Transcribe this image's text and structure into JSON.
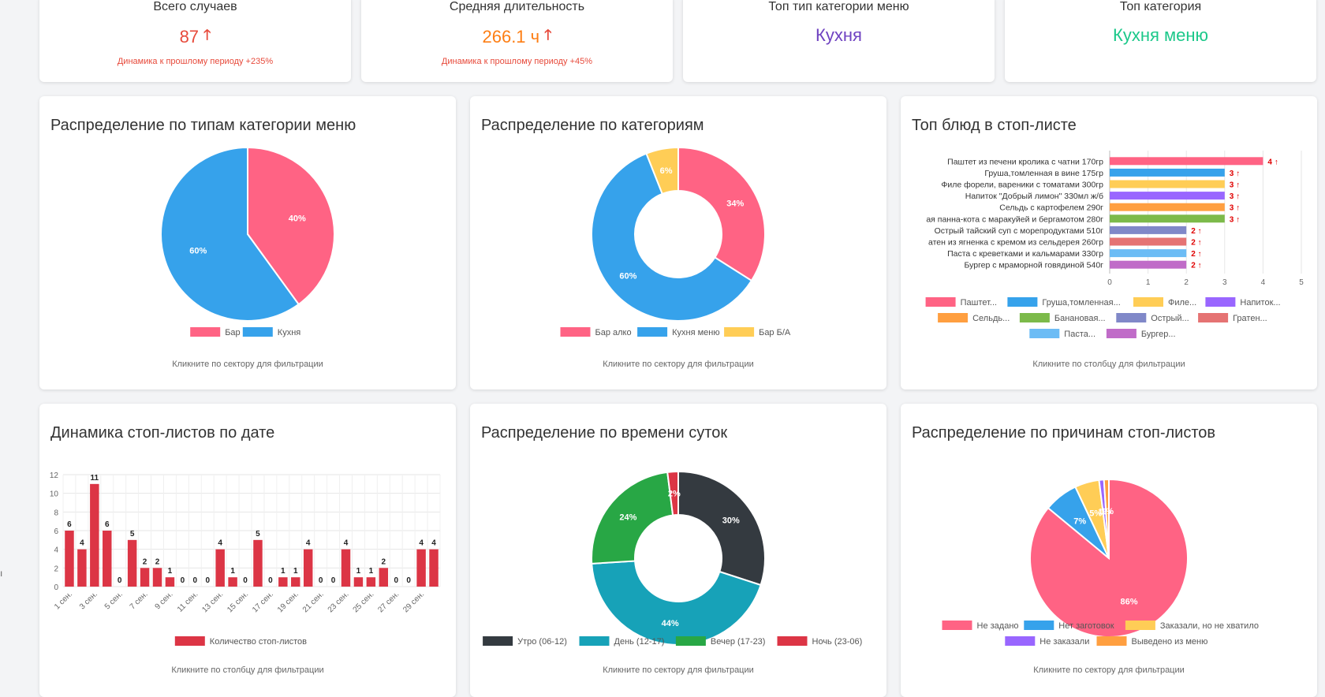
{
  "stats": [
    {
      "title": "Всего случаев",
      "value": "87",
      "color": "#e74a3b",
      "arrow": "up",
      "sub": "Динамика к прошлому периоду +235%"
    },
    {
      "title": "Средняя длительность",
      "value": "266.1 ч",
      "color": "#fd7e14",
      "arrow": "up",
      "sub": "Динамика к прошлому периоду +45%"
    },
    {
      "title": "Топ тип категории меню",
      "value": "Кухня",
      "color": "#6f42c1",
      "arrow": "",
      "sub": ""
    },
    {
      "title": "Топ категория",
      "value": "Кухня меню",
      "color": "#1cc88a",
      "arrow": "",
      "sub": ""
    }
  ],
  "edge_text": "ı",
  "chart_data": [
    {
      "id": "pie-types",
      "type": "pie",
      "title": "Распределение по типам категории меню",
      "note": "Кликните по сектору для фильтрации",
      "labels": [
        "Бар",
        "Кухня"
      ],
      "values": [
        40,
        60
      ],
      "value_labels": [
        "40%",
        "60%"
      ],
      "colors": [
        "#ff6384",
        "#36a2eb"
      ],
      "legend": "bottom"
    },
    {
      "id": "donut-categories",
      "type": "pie",
      "donut": true,
      "title": "Распределение по категориям",
      "note": "Кликните по сектору для фильтрации",
      "labels": [
        "Бар алко",
        "Кухня меню",
        "Бар Б/А"
      ],
      "values": [
        34,
        60,
        6
      ],
      "value_labels": [
        "34%",
        "60%",
        "6%"
      ],
      "colors": [
        "#ff6384",
        "#36a2eb",
        "#ffcd56"
      ],
      "legend": "bottom"
    },
    {
      "id": "top-dishes",
      "type": "bar",
      "orientation": "horizontal",
      "title": "Топ блюд в стоп-листе",
      "note": "Кликните по столбцу для фильтрации",
      "categories": [
        "Паштет из печени кролика с чатни 170гр",
        "Груша,томленная в вине 175гр",
        "Филе форели, вареники с томатами  300гр",
        "Напиток \"Добрый лимон\" 330мл ж/б",
        "Сельдь с картофелем 290г",
        "ая панна-кота с маракуйей и бергамотом 280г",
        "Острый тайский суп с морепродуктами 510г",
        "атен из ягненка с кремом из сельдерея 260гр",
        "Паста с креветками и кальмарами 330гр",
        "Бургер с мраморной говядиной 540г"
      ],
      "values": [
        4,
        3,
        3,
        3,
        3,
        3,
        2,
        2,
        2,
        2
      ],
      "value_labels": [
        "4 ↑",
        "3 ↑",
        "3 ↑",
        "3 ↑",
        "3 ↑",
        "3 ↑",
        "2 ↑",
        "2 ↑",
        "2 ↑",
        "2 ↑"
      ],
      "legend_labels": [
        "Паштет...",
        "Груша,томленная...",
        "Филе...",
        "Напиток...",
        "Сельдь...",
        "Банановая...",
        "Острый...",
        "Гратен...",
        "Паста...",
        "Бургер..."
      ],
      "colors": [
        "#ff6384",
        "#36a2eb",
        "#ffcd56",
        "#9966ff",
        "#ff9f40",
        "#7cba4a",
        "#8088c8",
        "#e57373",
        "#6cbcf5",
        "#c06cc8"
      ],
      "xlim": [
        0,
        5
      ],
      "xticks": [
        "0",
        "1",
        "2",
        "3",
        "4",
        "5"
      ],
      "grid": true,
      "legend": "bottom"
    },
    {
      "id": "by-date",
      "type": "bar",
      "title": "Динамика стоп-листов по дате",
      "note": "Кликните по столбцу для фильтрации",
      "series_name": "Количество стоп-листов",
      "x": [
        "1 сен.",
        "2 сен.",
        "3 сен.",
        "4 сен.",
        "5 сен.",
        "6 сен.",
        "7 сен.",
        "8 сен.",
        "9 сен.",
        "10 сен.",
        "11 сен.",
        "12 сен.",
        "13 сен.",
        "14 сен.",
        "15 сен.",
        "16 сен.",
        "17 сен.",
        "18 сен.",
        "19 сен.",
        "20 сен.",
        "21 сен.",
        "22 сен.",
        "23 сен.",
        "24 сен.",
        "25 сен.",
        "26 сен.",
        "27 сен.",
        "28 сен.",
        "29 сен.",
        "30 сен."
      ],
      "x_tick_labels": [
        "1 сен.",
        "",
        "3 сен.",
        "",
        "5 сен.",
        "",
        "7 сен.",
        "",
        "9 сен.",
        "",
        "11 сен.",
        "",
        "13 сен.",
        "",
        "15 сен.",
        "",
        "17 сен.",
        "",
        "19 сен.",
        "",
        "21 сен.",
        "",
        "23 сен.",
        "",
        "25 сен.",
        "",
        "27 сен.",
        "",
        "29 сен.",
        ""
      ],
      "values": [
        6,
        4,
        11,
        6,
        0,
        5,
        2,
        2,
        1,
        0,
        0,
        0,
        4,
        1,
        0,
        5,
        0,
        1,
        1,
        4,
        0,
        0,
        4,
        1,
        1,
        2,
        0,
        0,
        4,
        4
      ],
      "value_labels": [
        "6",
        "4",
        "11",
        "6",
        "0",
        "5",
        "2",
        "2",
        "1",
        "0",
        "0",
        "0",
        "4",
        "1",
        "0",
        "5",
        "0",
        "1",
        "1",
        "4",
        "0",
        "0",
        "4",
        "1",
        "1",
        "2",
        "0",
        "0",
        "4",
        "4"
      ],
      "color": "#dc3545",
      "ylim": [
        0,
        12
      ],
      "yticks": [
        "0",
        "2",
        "4",
        "6",
        "8",
        "10",
        "12"
      ],
      "grid": true,
      "legend": "bottom"
    },
    {
      "id": "by-time",
      "type": "pie",
      "donut": true,
      "title": "Распределение по времени суток",
      "note": "Кликните по сектору для фильтрации",
      "labels": [
        "Утро (06-12)",
        "День (12-17)",
        "Вечер (17-23)",
        "Ночь (23-06)"
      ],
      "values": [
        30,
        44,
        24,
        2
      ],
      "value_labels": [
        "30%",
        "44%",
        "24%",
        "2%"
      ],
      "colors": [
        "#343a40",
        "#17a2b8",
        "#28a745",
        "#dc3545"
      ],
      "legend": "bottom"
    },
    {
      "id": "by-reason",
      "type": "pie",
      "title": "Распределение по причинам стоп-листов",
      "note": "Кликните по сектору для фильтрации",
      "labels": [
        "Не задано",
        "Нет заготовок",
        "Заказали, но не хватило",
        "Не заказали",
        "Выведено из меню"
      ],
      "values": [
        86,
        7,
        5,
        1,
        1
      ],
      "value_labels": [
        "86%",
        "7%",
        "5%",
        "1%",
        "1%"
      ],
      "colors": [
        "#ff6384",
        "#36a2eb",
        "#ffcd56",
        "#9966ff",
        "#ff9f40"
      ],
      "legend": "bottom"
    }
  ]
}
